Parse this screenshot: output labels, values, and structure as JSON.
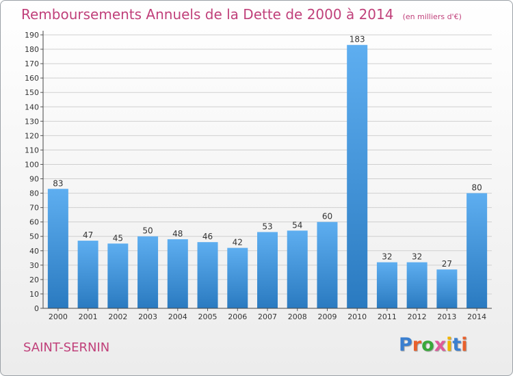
{
  "title": "Remboursements Annuels de la Dette de 2000 à 2014",
  "subtitle": "(en milliers d'€)",
  "commune": "SAINT-SERNIN",
  "logo": {
    "text": "Proxiti",
    "colors": [
      "#3a7fd0",
      "#e8602c",
      "#39a83a",
      "#e05a9b",
      "#f0b400",
      "#3a7fd0",
      "#e8602c"
    ]
  },
  "colors": {
    "title": "#c0407a",
    "bar_light": "#5eaef0",
    "bar_dark": "#2a7ac0"
  },
  "chart_data": {
    "type": "bar",
    "title": "Remboursements Annuels de la Dette de 2000 à 2014",
    "subtitle": "(en milliers d'€)",
    "categories": [
      "2000",
      "2001",
      "2002",
      "2003",
      "2004",
      "2005",
      "2006",
      "2007",
      "2008",
      "2009",
      "2010",
      "2011",
      "2012",
      "2013",
      "2014"
    ],
    "values": [
      83,
      47,
      45,
      50,
      48,
      46,
      42,
      53,
      54,
      60,
      183,
      32,
      32,
      27,
      80
    ],
    "ylim": [
      0,
      190
    ],
    "ytick_step": 10,
    "grid": true,
    "legend": "none"
  }
}
